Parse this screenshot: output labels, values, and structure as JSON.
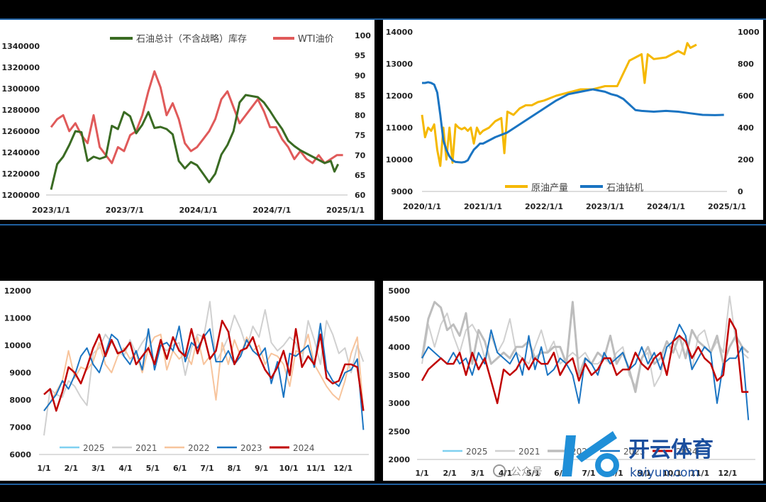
{
  "colors": {
    "inventory": "#3a6b23",
    "wti": "#e05a5a",
    "production": "#f5b800",
    "rigs": "#1a74c2",
    "y2025": "#7fd0f0",
    "y2021": "#d0d0d0",
    "y2022": "#f7c49c",
    "y2023": "#1a74c2",
    "y2024": "#c00000",
    "y2021_bold": "#bdbdbd"
  },
  "chart_data": [
    {
      "type": "line",
      "legend": [
        "石油总计（不含战略）库存",
        "WTI油价"
      ],
      "x_ticks": [
        "2023/1/1",
        "2023/7/1",
        "2024/1/1",
        "2024/7/1",
        "2025/1/1"
      ],
      "y_left_ticks": [
        "1200000",
        "1220000",
        "1240000",
        "1260000",
        "1280000",
        "1300000",
        "1320000",
        "1340000"
      ],
      "y_right_ticks": [
        "60",
        "65",
        "70",
        "75",
        "80",
        "85",
        "90",
        "95",
        "100"
      ],
      "ylim_left": [
        1200000,
        1350000
      ],
      "ylim_right": [
        60,
        100
      ],
      "xlim": [
        0,
        24.2
      ],
      "series": [
        {
          "name": "石油总计（不含战略）库存",
          "axis": "left",
          "x": [
            0,
            0.5,
            1,
            1.5,
            2,
            2.5,
            3,
            3.5,
            4,
            4.5,
            5,
            5.5,
            6,
            6.5,
            7,
            7.5,
            8,
            8.5,
            9,
            9.5,
            10,
            10.5,
            11,
            11.5,
            12,
            12.5,
            13,
            13.5,
            14,
            14.5,
            15,
            15.5,
            16,
            16.5,
            17,
            17.5,
            18,
            18.5,
            19,
            19.5,
            20,
            20.5,
            21,
            21.5,
            22,
            22.5,
            23,
            23.3,
            23.6
          ],
          "values": [
            1205000,
            1229000,
            1236000,
            1247000,
            1260000,
            1259000,
            1232000,
            1236000,
            1234000,
            1236000,
            1265000,
            1262000,
            1278000,
            1274000,
            1258000,
            1266000,
            1278000,
            1263000,
            1264000,
            1262000,
            1257000,
            1232000,
            1225000,
            1231000,
            1228000,
            1220000,
            1212000,
            1220000,
            1238000,
            1247000,
            1260000,
            1287000,
            1294000,
            1293000,
            1292000,
            1287000,
            1279000,
            1270000,
            1262000,
            1251000,
            1246000,
            1242000,
            1239000,
            1236000,
            1233000,
            1230000,
            1232000,
            1222000,
            1229000
          ]
        },
        {
          "name": "WTI油价",
          "axis": "right",
          "x": [
            0,
            0.5,
            1,
            1.5,
            2,
            2.5,
            3,
            3.5,
            4,
            4.5,
            5,
            5.5,
            6,
            6.5,
            7,
            7.5,
            8,
            8.5,
            9,
            9.5,
            10,
            10.5,
            11,
            11.5,
            12,
            12.5,
            13,
            13.5,
            14,
            14.5,
            15,
            15.5,
            16,
            16.5,
            17,
            17.5,
            18,
            18.5,
            19,
            19.5,
            20,
            20.5,
            21,
            21.5,
            22,
            22.5,
            23,
            23.5,
            24
          ],
          "values": [
            77,
            79,
            80,
            76,
            78,
            75,
            73,
            80,
            72,
            70,
            68,
            72,
            71,
            75,
            76,
            80,
            86,
            91,
            87,
            80,
            83,
            79,
            73,
            71,
            72,
            74,
            76,
            79,
            84,
            86,
            82,
            78,
            80,
            82,
            84,
            81,
            77,
            77,
            74,
            72,
            69,
            71,
            69,
            68,
            70,
            68,
            69,
            70,
            70
          ]
        }
      ]
    },
    {
      "type": "line",
      "legend": [
        "原油产量",
        "石油钻机"
      ],
      "x_ticks": [
        "2020/1/1",
        "2021/1/1",
        "2022/1/1",
        "2023/1/1",
        "2024/1/1",
        "2025/1/1"
      ],
      "y_left_ticks": [
        "9000",
        "10000",
        "11000",
        "12000",
        "13000",
        "14000"
      ],
      "y_right_ticks": [
        "0",
        "200",
        "400",
        "600",
        "800",
        "1000"
      ],
      "ylim_left": [
        9000,
        14000
      ],
      "ylim_right": [
        0,
        1000
      ],
      "xlim": [
        0,
        5
      ],
      "series": [
        {
          "name": "原油产量",
          "axis": "left",
          "x": [
            0,
            0.05,
            0.1,
            0.15,
            0.2,
            0.25,
            0.3,
            0.35,
            0.4,
            0.45,
            0.5,
            0.55,
            0.6,
            0.65,
            0.7,
            0.75,
            0.8,
            0.85,
            0.9,
            0.95,
            1.0,
            1.1,
            1.2,
            1.3,
            1.35,
            1.4,
            1.5,
            1.6,
            1.7,
            1.8,
            1.9,
            2.0,
            2.2,
            2.4,
            2.6,
            2.8,
            3.0,
            3.2,
            3.3,
            3.4,
            3.5,
            3.6,
            3.65,
            3.7,
            3.8,
            4.0,
            4.2,
            4.3,
            4.35,
            4.4,
            4.5
          ],
          "values": [
            11400,
            10700,
            11000,
            10900,
            11100,
            10300,
            9800,
            11000,
            10000,
            11000,
            9900,
            11100,
            11000,
            10950,
            11000,
            10900,
            11000,
            10500,
            11000,
            10800,
            10900,
            11000,
            11200,
            11300,
            10200,
            11500,
            11400,
            11600,
            11700,
            11700,
            11800,
            11850,
            12000,
            12100,
            12200,
            12200,
            12300,
            12300,
            12700,
            13100,
            13200,
            13300,
            12400,
            13300,
            13150,
            13200,
            13400,
            13300,
            13650,
            13500,
            13600
          ]
        },
        {
          "name": "石油钻机",
          "axis": "right",
          "x": [
            0,
            0.05,
            0.1,
            0.15,
            0.2,
            0.25,
            0.3,
            0.35,
            0.4,
            0.45,
            0.5,
            0.55,
            0.6,
            0.65,
            0.7,
            0.75,
            0.8,
            0.85,
            0.9,
            0.95,
            1.0,
            1.2,
            1.4,
            1.6,
            1.8,
            2.0,
            2.2,
            2.4,
            2.6,
            2.8,
            3.0,
            3.1,
            3.2,
            3.3,
            3.4,
            3.5,
            3.6,
            3.8,
            4.0,
            4.2,
            4.4,
            4.6,
            4.8,
            4.95
          ],
          "values": [
            680,
            680,
            685,
            680,
            670,
            620,
            480,
            320,
            260,
            220,
            195,
            185,
            183,
            182,
            185,
            195,
            230,
            262,
            280,
            300,
            300,
            340,
            370,
            420,
            470,
            520,
            570,
            610,
            625,
            640,
            625,
            610,
            600,
            580,
            545,
            510,
            505,
            500,
            505,
            500,
            490,
            480,
            478,
            480
          ]
        }
      ]
    },
    {
      "type": "line",
      "legend": [
        "2025",
        "2021",
        "2022",
        "2023",
        "2024"
      ],
      "x_ticks": [
        "1/1",
        "2/1",
        "3/1",
        "4/1",
        "5/1",
        "6/1",
        "7/1",
        "8/1",
        "9/1",
        "10/1",
        "11/1",
        "12/1"
      ],
      "y_ticks": [
        "6000",
        "7000",
        "8000",
        "9000",
        "10000",
        "11000",
        "12000"
      ],
      "ylim": [
        6000,
        12000
      ],
      "xlim": [
        0,
        12
      ],
      "series": [
        {
          "name": "2025",
          "x": [
            0
          ],
          "values": [
            7600
          ]
        },
        {
          "name": "2021",
          "values": [
            6700,
            8400,
            8200,
            8100,
            8700,
            8500,
            8100,
            7800,
            9700,
            9900,
            10400,
            10100,
            9800,
            9600,
            10200,
            9700,
            10100,
            10400,
            9300,
            10000,
            9800,
            10000,
            10100,
            8900,
            9900,
            10400,
            10300,
            11600,
            9400,
            9800,
            10300,
            11100,
            10600,
            9900,
            10700,
            10300,
            11300,
            10100,
            9800,
            10000,
            10300,
            10100,
            9400,
            10900,
            10200,
            9300,
            10900,
            10400,
            9700,
            9900,
            9000,
            10000,
            9400
          ]
        },
        {
          "name": "2022",
          "values": [
            7600,
            7900,
            8300,
            8700,
            9800,
            8800,
            9200,
            9100,
            9400,
            10100,
            9300,
            9000,
            9600,
            9900,
            9500,
            9700,
            9000,
            9900,
            10300,
            10400,
            9100,
            9800,
            9500,
            9700,
            9300,
            10300,
            9300,
            9600,
            8000,
            10100,
            9300,
            10200,
            9600,
            10300,
            9800,
            10000,
            9300,
            9700,
            9600,
            9300,
            8500,
            9800,
            9700,
            10400,
            9300,
            8900,
            8500,
            8200,
            8000,
            8700,
            9700,
            10300,
            7600
          ]
        },
        {
          "name": "2023",
          "values": [
            7600,
            7900,
            8200,
            8700,
            8400,
            8900,
            9600,
            9900,
            9300,
            9000,
            9700,
            10400,
            10200,
            9600,
            9300,
            9800,
            9100,
            10600,
            9100,
            10000,
            10100,
            9800,
            10700,
            9400,
            10100,
            9900,
            10300,
            10600,
            9400,
            9400,
            9800,
            9300,
            9600,
            10200,
            9800,
            9600,
            9900,
            8600,
            9400,
            8100,
            9700,
            9600,
            9800,
            10000,
            9200,
            10800,
            9100,
            8700,
            8500,
            9000,
            9100,
            9500,
            6900
          ]
        },
        {
          "name": "2024",
          "values": [
            8200,
            8400,
            7600,
            8300,
            9200,
            9000,
            8600,
            9200,
            9900,
            10400,
            9600,
            10200,
            9700,
            9800,
            10100,
            9300,
            9600,
            9900,
            9300,
            10200,
            9500,
            10300,
            9800,
            9600,
            10600,
            9700,
            10400,
            9500,
            9800,
            10900,
            10500,
            9300,
            9800,
            9900,
            10300,
            9600,
            9100,
            8800,
            9200,
            9800,
            8900,
            10600,
            9200,
            9600,
            9300,
            10400,
            8800,
            8600,
            8700,
            9300,
            9300,
            9200,
            7600
          ]
        }
      ]
    },
    {
      "type": "line",
      "legend": [
        "2025",
        "2021",
        "2022",
        "2023",
        "2024"
      ],
      "x_ticks": [
        "1/1",
        "2/1",
        "3/1",
        "4/1",
        "5/1",
        "6/1",
        "7/1",
        "8/1",
        "9/1",
        "10/1",
        "11/1",
        "12/1"
      ],
      "y_ticks": [
        "2000",
        "2500",
        "3000",
        "3500",
        "4000",
        "4500",
        "5000"
      ],
      "ylim": [
        2000,
        5000
      ],
      "xlim": [
        0,
        12
      ],
      "series": [
        {
          "name": "2025",
          "x": [
            0
          ],
          "values": [
            3800
          ]
        },
        {
          "name": "2021",
          "values": [
            3700,
            4400,
            4000,
            4400,
            4600,
            4200,
            3900,
            4300,
            4400,
            4200,
            3800,
            4200,
            3900,
            4100,
            4500,
            3900,
            3800,
            3700,
            4000,
            4300,
            3900,
            4100,
            3700,
            3800,
            3900,
            3800,
            3900,
            3700,
            3700,
            3800,
            3700,
            3900,
            4000,
            3500,
            3300,
            3800,
            3900,
            3300,
            3500,
            4000,
            4100,
            3800,
            4200,
            3600,
            4200,
            4300,
            3900,
            4100,
            3900,
            4900,
            4100,
            3900,
            3800
          ]
        },
        {
          "name": "2022",
          "values": [
            3800,
            4500,
            4800,
            4700,
            4300,
            4400,
            4200,
            4600,
            3700,
            4300,
            4100,
            3700,
            3800,
            3900,
            3800,
            4000,
            4000,
            4100,
            3800,
            3900,
            3900,
            4000,
            4000,
            3700,
            4800,
            3500,
            3800,
            3700,
            3900,
            3800,
            4200,
            3700,
            3900,
            3600,
            3200,
            3800,
            4000,
            3700,
            3800,
            4100,
            3900,
            4200,
            3800,
            4300,
            4100,
            4000,
            3900,
            4200,
            3700,
            4000,
            4200,
            4000,
            3900
          ]
        },
        {
          "name": "2023",
          "values": [
            3800,
            4000,
            3900,
            3800,
            3700,
            3900,
            3700,
            3800,
            3500,
            3900,
            3700,
            4300,
            3900,
            3800,
            3700,
            3900,
            3500,
            4200,
            3600,
            4000,
            3500,
            3600,
            3800,
            3700,
            3500,
            3000,
            3800,
            3700,
            3500,
            3900,
            3700,
            3800,
            3900,
            3600,
            3700,
            4000,
            3700,
            3900,
            3600,
            4000,
            4100,
            4400,
            4200,
            3600,
            3800,
            4000,
            3900,
            3000,
            3700,
            3800,
            3800,
            4000,
            2700
          ]
        },
        {
          "name": "2024",
          "values": [
            3400,
            3600,
            3700,
            3800,
            3700,
            3700,
            3900,
            3500,
            3900,
            3600,
            3800,
            3400,
            3000,
            3600,
            3500,
            3600,
            3800,
            3600,
            3800,
            3700,
            3700,
            3900,
            3500,
            3700,
            3800,
            3400,
            3700,
            3500,
            3600,
            3800,
            3800,
            3500,
            3600,
            3600,
            3900,
            3700,
            3600,
            3800,
            3900,
            3500,
            4100,
            4200,
            4100,
            3800,
            4000,
            3800,
            3700,
            3400,
            3500,
            4500,
            4300,
            3200,
            3200
          ]
        }
      ]
    }
  ],
  "watermark": {
    "channel_label": "公众号",
    "brand_name": "开云体育",
    "brand_url": "kaiyun.com"
  }
}
